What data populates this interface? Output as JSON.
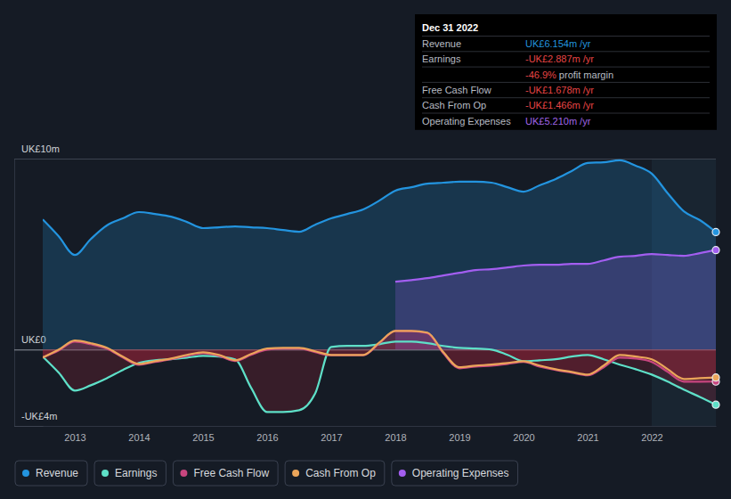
{
  "chart_data": {
    "type": "line",
    "x": [
      2012.5,
      2012.75,
      2013,
      2013.25,
      2013.5,
      2013.75,
      2014,
      2014.25,
      2014.5,
      2014.75,
      2015,
      2015.25,
      2015.5,
      2015.75,
      2016,
      2016.25,
      2016.5,
      2016.75,
      2017,
      2017.25,
      2017.5,
      2017.75,
      2018,
      2018.25,
      2018.5,
      2018.75,
      2019,
      2019.25,
      2019.5,
      2019.75,
      2020,
      2020.25,
      2020.5,
      2020.75,
      2021,
      2021.25,
      2021.5,
      2021.75,
      2022,
      2022.25,
      2022.5,
      2022.75,
      2023
    ],
    "xlim": [
      2012.5,
      2023
    ],
    "xticks": [
      2013,
      2014,
      2015,
      2016,
      2017,
      2018,
      2019,
      2020,
      2021,
      2022
    ],
    "ylim": [
      -4,
      10
    ],
    "yticks": [
      {
        "value": 10,
        "label": "UK£10m"
      },
      {
        "value": 0,
        "label": "UK£0"
      },
      {
        "value": -4,
        "label": "-UK£4m"
      }
    ],
    "grid": true,
    "legend": "bottom",
    "series": [
      {
        "name": "Revenue",
        "color": "#2394df",
        "values": [
          6.82,
          5.93,
          4.95,
          5.79,
          6.5,
          6.87,
          7.2,
          7.1,
          6.96,
          6.68,
          6.36,
          6.4,
          6.45,
          6.4,
          6.36,
          6.26,
          6.17,
          6.54,
          6.87,
          7.1,
          7.34,
          7.8,
          8.32,
          8.5,
          8.69,
          8.74,
          8.79,
          8.79,
          8.74,
          8.5,
          8.27,
          8.6,
          8.93,
          9.35,
          9.77,
          9.81,
          9.91,
          9.63,
          9.21,
          8.18,
          7.24,
          6.78,
          6.154
        ]
      },
      {
        "name": "Earnings",
        "color": "#5ee0c8",
        "values": [
          -0.37,
          -1.21,
          -2.15,
          -1.87,
          -1.5,
          -1.07,
          -0.7,
          -0.56,
          -0.51,
          -0.42,
          -0.33,
          -0.37,
          -0.51,
          -2.0,
          -3.27,
          -3.27,
          -3.18,
          -2.3,
          0.14,
          0.19,
          0.19,
          0.28,
          0.42,
          0.42,
          0.33,
          0.19,
          0.09,
          0.05,
          0,
          -0.28,
          -0.61,
          -0.56,
          -0.51,
          -0.37,
          -0.28,
          -0.51,
          -0.79,
          -1.03,
          -1.31,
          -1.68,
          -2.1,
          -2.48,
          -2.887
        ]
      },
      {
        "name": "Free Cash Flow",
        "color": "#c8467f",
        "values": [
          -0.42,
          -0.05,
          0.42,
          0.28,
          0.05,
          -0.42,
          -0.8,
          -0.65,
          -0.51,
          -0.33,
          -0.19,
          -0.33,
          -0.6,
          -0.28,
          0,
          0.05,
          0.05,
          -0.14,
          -0.3,
          -0.3,
          -0.3,
          0.33,
          0.98,
          0.96,
          0.86,
          -0.2,
          -0.98,
          -0.89,
          -0.84,
          -0.75,
          -0.65,
          -0.89,
          -1.07,
          -1.21,
          -1.35,
          -0.93,
          -0.42,
          -0.47,
          -0.65,
          -1.17,
          -1.68,
          -1.68,
          -1.678
        ]
      },
      {
        "name": "Cash From Op",
        "color": "#eba55a",
        "values": [
          -0.42,
          0,
          0.47,
          0.33,
          0.09,
          -0.37,
          -0.75,
          -0.61,
          -0.47,
          -0.28,
          -0.14,
          -0.28,
          -0.56,
          -0.23,
          0.05,
          0.09,
          0.09,
          -0.09,
          -0.28,
          -0.28,
          -0.28,
          0.37,
          0.98,
          0.98,
          0.89,
          -0.14,
          -0.93,
          -0.84,
          -0.79,
          -0.7,
          -0.61,
          -0.84,
          -1.03,
          -1.17,
          -1.31,
          -0.84,
          -0.28,
          -0.37,
          -0.51,
          -1.03,
          -1.54,
          -1.5,
          -1.466
        ]
      },
      {
        "name": "Operating Expenses",
        "color": "#a35ef0",
        "values": [
          null,
          null,
          null,
          null,
          null,
          null,
          null,
          null,
          null,
          null,
          null,
          null,
          null,
          null,
          null,
          null,
          null,
          null,
          null,
          null,
          null,
          null,
          3.55,
          3.64,
          3.74,
          3.88,
          4.02,
          4.16,
          4.21,
          4.3,
          4.4,
          4.44,
          4.44,
          4.49,
          4.49,
          4.67,
          4.86,
          4.91,
          5.0,
          4.95,
          4.91,
          5.05,
          5.21
        ]
      }
    ],
    "tooltip": {
      "title": "Dec 31 2022",
      "rows": [
        {
          "label": "Revenue",
          "value": "UK£6.154m",
          "suffix": "/yr",
          "color": "#2394df"
        },
        {
          "label": "Earnings",
          "value": "-UK£2.887m",
          "suffix": "/yr",
          "color": "#e64545"
        },
        {
          "value": "-46.9%",
          "suffix": "profit margin",
          "color": "#e64545"
        },
        {
          "label": "Free Cash Flow",
          "value": "-UK£1.678m",
          "suffix": "/yr",
          "color": "#e64545"
        },
        {
          "label": "Cash From Op",
          "value": "-UK£1.466m",
          "suffix": "/yr",
          "color": "#e64545"
        },
        {
          "label": "Operating Expenses",
          "value": "UK£5.210m",
          "suffix": "/yr",
          "color": "#a066e8"
        }
      ]
    }
  }
}
